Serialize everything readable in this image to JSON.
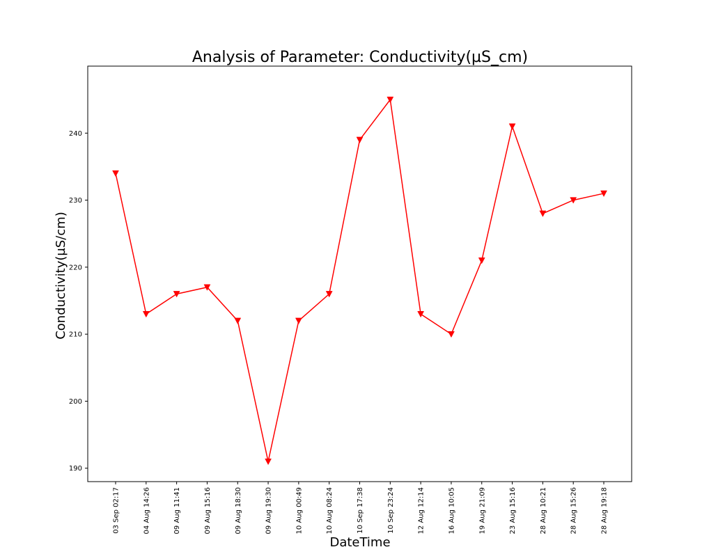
{
  "chart_data": {
    "type": "line",
    "title": "Analysis of Parameter: Conductivity(µS_cm)",
    "xlabel": "DateTime",
    "ylabel": "Conductivity(µS/cm)",
    "categories": [
      "03 Sep 02:17",
      "04 Aug 14:26",
      "09 Aug 11:41",
      "09 Aug 15:16",
      "09 Aug 18:30",
      "09 Aug 19:30",
      "10 Aug 00:49",
      "10 Aug 08:24",
      "10 Sep 17:38",
      "10 Sep 23:24",
      "12 Aug 12:14",
      "16 Aug 10:05",
      "19 Aug 21:09",
      "23 Aug 15:16",
      "28 Aug 10:21",
      "28 Aug 15:26",
      "28 Aug 19:18"
    ],
    "series": [
      {
        "values": [
          234,
          213,
          216,
          217,
          212,
          191,
          212,
          216,
          239,
          245,
          213,
          210,
          221,
          241,
          228,
          230,
          231
        ],
        "color": "#ff0000",
        "marker": "triangle-down"
      }
    ],
    "yticks": [
      190,
      200,
      210,
      220,
      230,
      240
    ],
    "ylim": [
      188,
      250
    ],
    "grid": false,
    "legend": "none"
  }
}
